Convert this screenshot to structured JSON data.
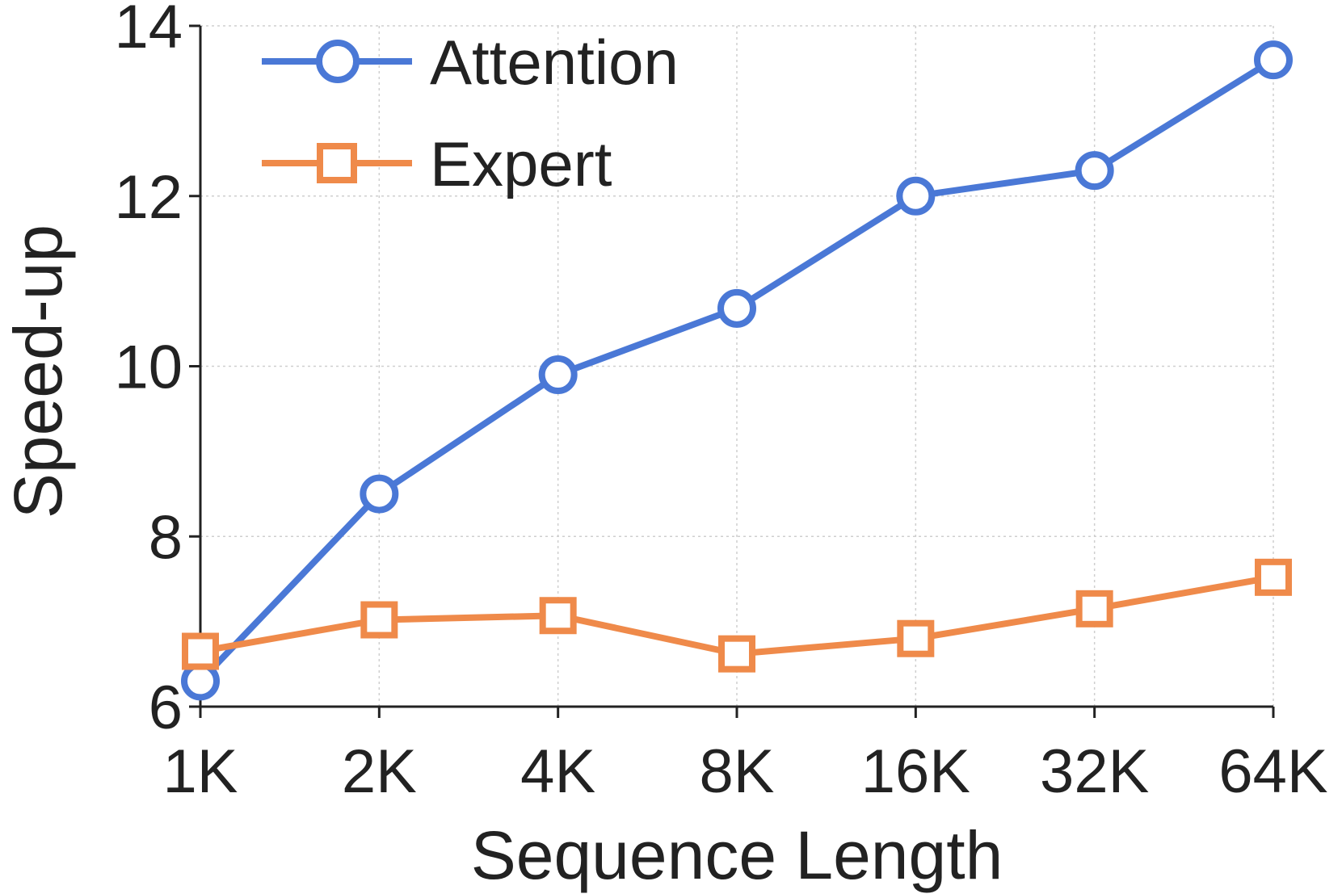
{
  "chart_data": {
    "type": "line",
    "categories": [
      "1K",
      "2K",
      "4K",
      "8K",
      "16K",
      "32K",
      "64K"
    ],
    "xlabel": "Sequence Length",
    "ylabel": "Speed-up",
    "ylim": [
      6,
      14
    ],
    "yticks": [
      6,
      8,
      10,
      12,
      14
    ],
    "grid": true,
    "legend_position": "top-left",
    "series": [
      {
        "name": "Attention",
        "marker": "circle",
        "color": "#4a78d6",
        "values": [
          6.3,
          8.5,
          9.9,
          10.68,
          12.0,
          12.3,
          13.6
        ]
      },
      {
        "name": "Expert",
        "marker": "square",
        "color": "#ef8a4a",
        "values": [
          6.65,
          7.02,
          7.07,
          6.62,
          6.8,
          7.15,
          7.52
        ]
      }
    ]
  }
}
